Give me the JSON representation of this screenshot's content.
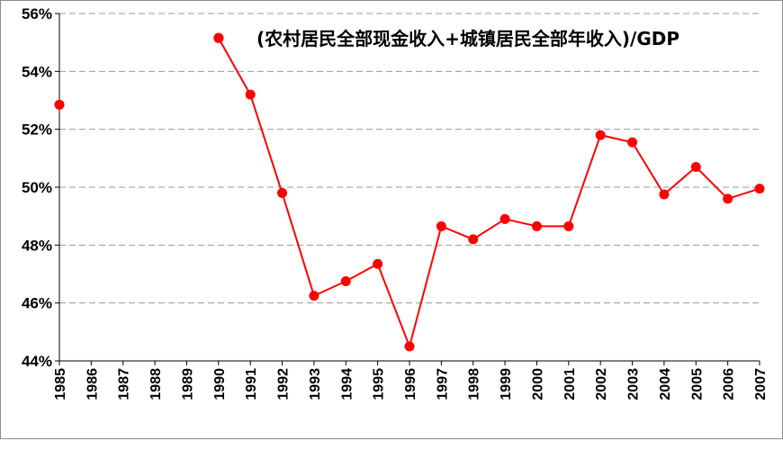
{
  "chart_data": {
    "type": "line",
    "legend": "(农村居民全部现金收入+城镇居民全部年收入)/GDP",
    "legend_position": "top-right",
    "color": "#ff0000",
    "grid": true,
    "x": [
      "1985",
      "1986",
      "1987",
      "1988",
      "1989",
      "1990",
      "1991",
      "1992",
      "1993",
      "1994",
      "1995",
      "1996",
      "1997",
      "1998",
      "1999",
      "2000",
      "2001",
      "2002",
      "2003",
      "2004",
      "2005",
      "2006",
      "2007"
    ],
    "values": [
      52.85,
      null,
      null,
      null,
      null,
      55.15,
      53.2,
      49.8,
      46.25,
      46.75,
      47.35,
      44.5,
      48.65,
      48.2,
      48.9,
      48.65,
      48.65,
      51.8,
      51.55,
      49.75,
      50.7,
      49.6,
      49.95
    ],
    "ylim": [
      44,
      56
    ],
    "yticks": [
      44,
      46,
      48,
      50,
      52,
      54,
      56
    ],
    "ytick_labels": [
      "44%",
      "46%",
      "48%",
      "50%",
      "52%",
      "54%",
      "56%"
    ]
  }
}
